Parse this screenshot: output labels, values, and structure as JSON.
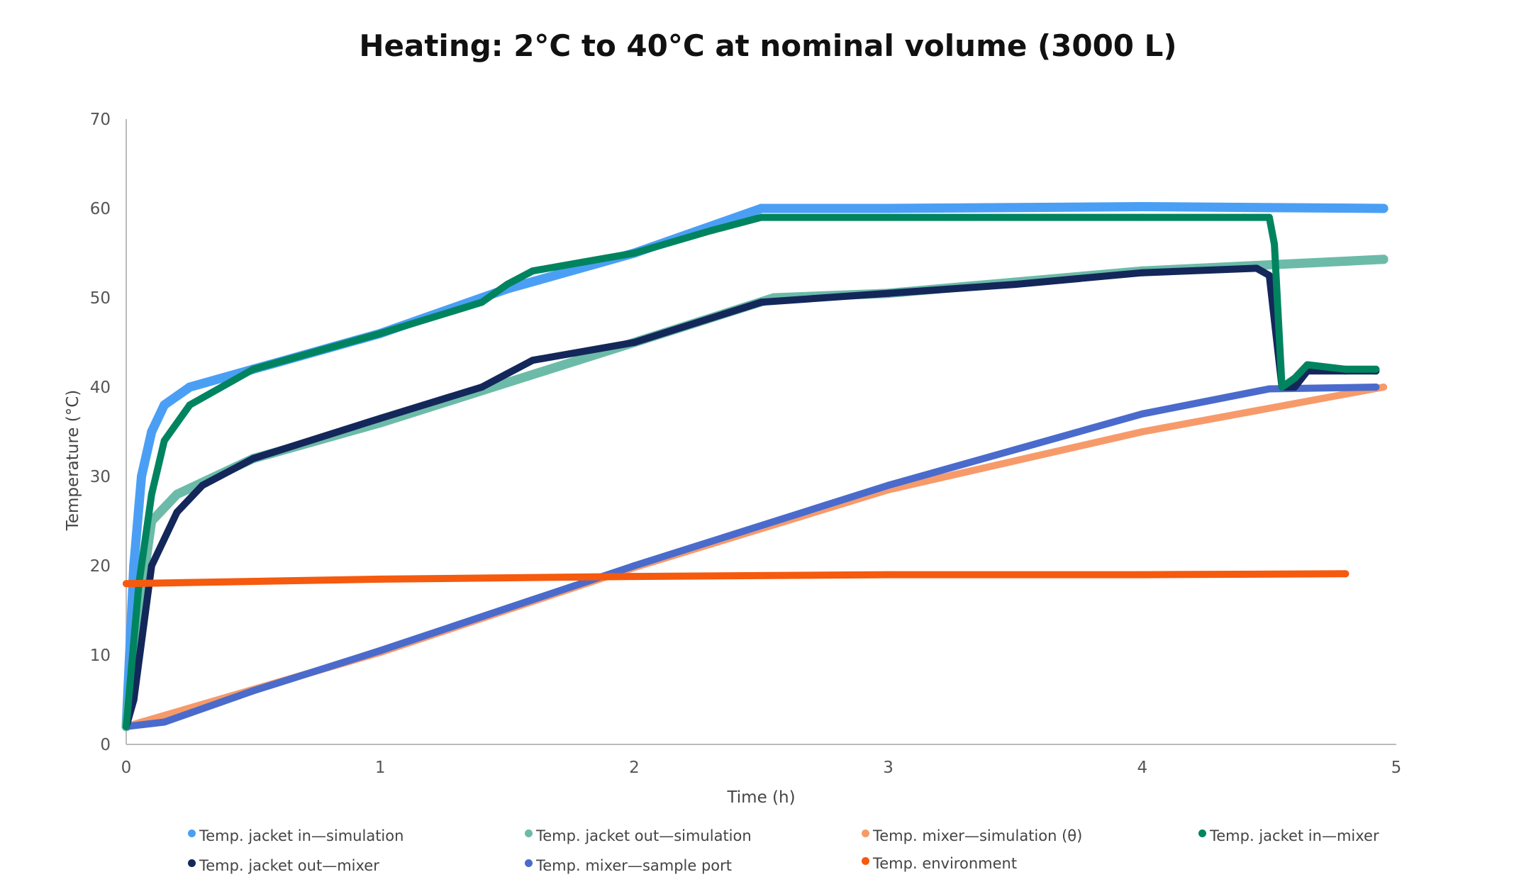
{
  "chart_data": {
    "type": "scatter",
    "title": "Heating: 2°C to 40°C at nominal volume (3000 L)",
    "xlabel": "Time (h)",
    "ylabel": "Temperature (°C)",
    "xlim": [
      0,
      5
    ],
    "ylim": [
      0,
      70
    ],
    "xticks": [
      "0",
      "1",
      "2",
      "3",
      "4",
      "5"
    ],
    "yticks": [
      "0",
      "10",
      "20",
      "30",
      "40",
      "50",
      "60",
      "70"
    ],
    "grid": false,
    "legend_position": "bottom",
    "series": [
      {
        "name": "Temp. jacket in—simulation",
        "color": "#4a9ff5",
        "x": [
          0,
          0.03,
          0.06,
          0.1,
          0.15,
          0.25,
          0.5,
          1,
          1.5,
          2,
          2.5,
          3,
          4,
          4.95
        ],
        "y": [
          2,
          20,
          30,
          35,
          38,
          40,
          42,
          46,
          51,
          55,
          60,
          60,
          60.2,
          60
        ]
      },
      {
        "name": "Temp. jacket out—simulation",
        "color": "#6cbba8",
        "x": [
          0,
          0.05,
          0.1,
          0.2,
          0.5,
          1,
          1.5,
          2,
          2.55,
          3,
          4,
          4.95
        ],
        "y": [
          2,
          15,
          25,
          28,
          32,
          36,
          40.5,
          45,
          50,
          50.5,
          53,
          54.3
        ]
      },
      {
        "name": "Temp. mixer—simulation (θ)",
        "color": "#f79a6a",
        "x": [
          0,
          1,
          2,
          3,
          4,
          4.95
        ],
        "y": [
          2,
          10.3,
          19.8,
          28.5,
          35,
          40
        ]
      },
      {
        "name": "Temp. jacket in—mixer",
        "color": "#00845f",
        "x": [
          0,
          0.05,
          0.1,
          0.15,
          0.25,
          0.5,
          1,
          1.4,
          1.5,
          1.6,
          1.8,
          2,
          2.3,
          2.5,
          3,
          4,
          4.4,
          4.5,
          4.52,
          4.55,
          4.6,
          4.65,
          4.8,
          4.92
        ],
        "y": [
          2,
          18,
          28,
          34,
          38,
          42,
          46,
          49.5,
          51.5,
          53,
          54,
          55,
          57.5,
          59,
          59,
          59,
          59,
          59,
          56,
          40,
          41,
          42.5,
          42,
          42
        ]
      },
      {
        "name": "Temp. jacket out—mixer",
        "color": "#14275a",
        "x": [
          0,
          0.03,
          0.1,
          0.2,
          0.3,
          0.5,
          1,
          1.4,
          1.5,
          1.6,
          2,
          2.5,
          3,
          3.5,
          4,
          4.45,
          4.5,
          4.55,
          4.6,
          4.65,
          4.8,
          4.92
        ],
        "y": [
          2,
          5,
          20,
          26,
          29,
          32,
          36.5,
          40,
          41.5,
          43,
          45,
          49.5,
          50.5,
          51.5,
          52.8,
          53.3,
          52.5,
          40,
          40,
          41.8,
          41.8,
          41.8
        ]
      },
      {
        "name": "Temp. mixer—sample port",
        "color": "#4a6bcc",
        "x": [
          0,
          0.15,
          0.5,
          1,
          2,
          3,
          4,
          4.5,
          4.92
        ],
        "y": [
          2,
          2.5,
          6,
          10.5,
          20,
          29,
          37,
          39.8,
          40
        ]
      },
      {
        "name": "Temp. environment",
        "color": "#f55a0e",
        "x": [
          0,
          1,
          2,
          3,
          4,
          4.8
        ],
        "y": [
          18,
          18.5,
          18.8,
          19,
          19,
          19.1
        ]
      }
    ]
  }
}
